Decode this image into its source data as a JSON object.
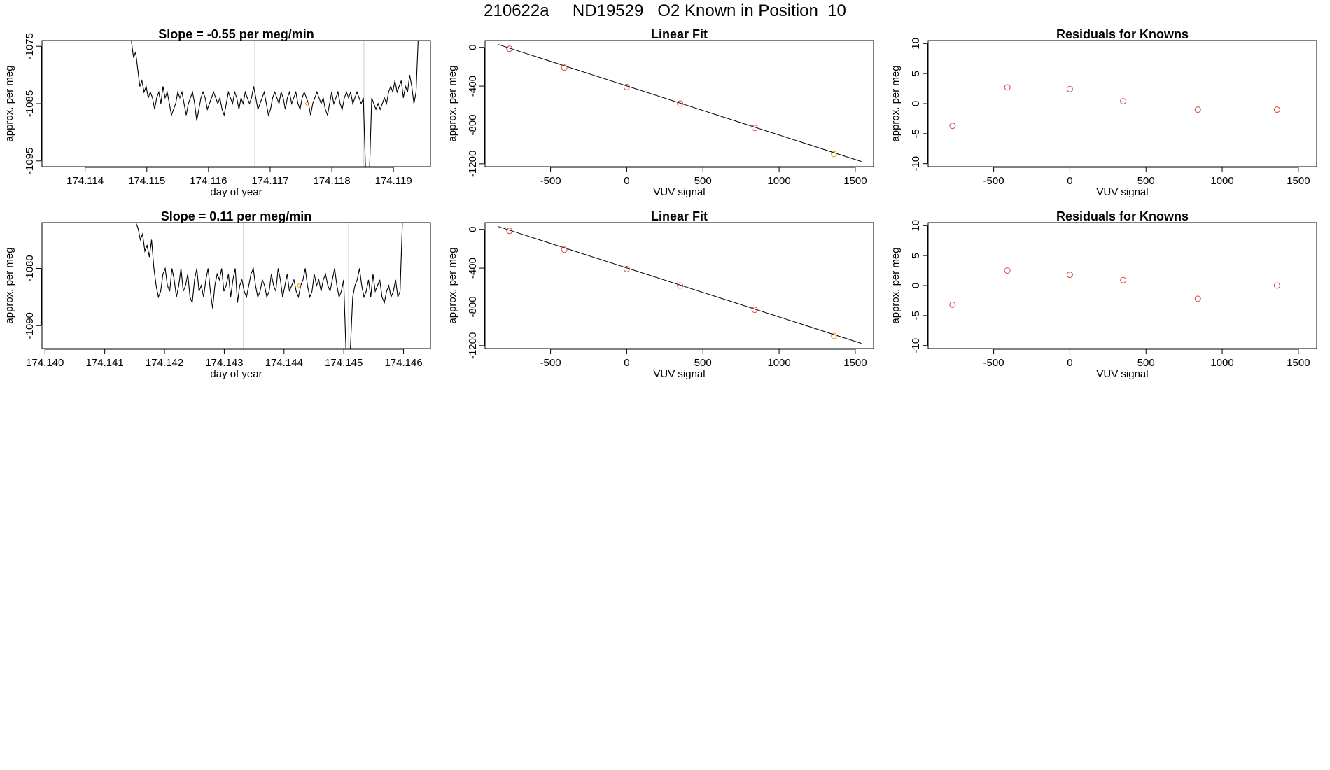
{
  "figure": {
    "title": "210622a     ND19529   O2 Known in Position  10"
  },
  "chart_data": [
    {
      "id": "timeseries-1",
      "type": "line",
      "title": "Slope =  -0.55  per meg/min",
      "xlabel": "day of year",
      "ylabel": "approx. per meg",
      "xlim": [
        174.1133,
        174.1196
      ],
      "ylim": [
        -1096,
        -1074
      ],
      "xticks": [
        174.114,
        174.115,
        174.116,
        174.117,
        174.118,
        174.119
      ],
      "xtick_labels": [
        "174.114",
        "174.115",
        "174.116",
        "174.117",
        "174.118",
        "174.119"
      ],
      "yticks": [
        -1075,
        -1085,
        -1095
      ],
      "ytick_labels": [
        "-1075",
        "-1085",
        "-1095"
      ],
      "vlines": [
        174.11675,
        174.11852
      ],
      "highlight_point": {
        "x": 174.1176,
        "y": -1085.0,
        "color": "#e69f00"
      },
      "line_color": "#000000",
      "grid": false,
      "series": [
        {
          "x_start": 174.11475,
          "x_end": 174.1194,
          "values": [
            -1074,
            -1077,
            -1076,
            -1079,
            -1082,
            -1081,
            -1083,
            -1082,
            -1084,
            -1083,
            -1084,
            -1086,
            -1084,
            -1083,
            -1085,
            -1082,
            -1084,
            -1083,
            -1085,
            -1087,
            -1086,
            -1085,
            -1083,
            -1084,
            -1083,
            -1085,
            -1087,
            -1085,
            -1084,
            -1083,
            -1085,
            -1088,
            -1086,
            -1084,
            -1083,
            -1084,
            -1086,
            -1085,
            -1084,
            -1083,
            -1084,
            -1085,
            -1084,
            -1086,
            -1087,
            -1085,
            -1083,
            -1084,
            -1085,
            -1083,
            -1084,
            -1086,
            -1084,
            -1085,
            -1083,
            -1084,
            -1085,
            -1084,
            -1082,
            -1084,
            -1086,
            -1085,
            -1084,
            -1083,
            -1085,
            -1087,
            -1086,
            -1084,
            -1083,
            -1084,
            -1085,
            -1083,
            -1084,
            -1086,
            -1084,
            -1083,
            -1085,
            -1084,
            -1083,
            -1085,
            -1086,
            -1084,
            -1083,
            -1084,
            -1085,
            -1087,
            -1085,
            -1084,
            -1083,
            -1084,
            -1085,
            -1084,
            -1086,
            -1087,
            -1085,
            -1083,
            -1085,
            -1084,
            -1083,
            -1085,
            -1086,
            -1084,
            -1083,
            -1084,
            -1083,
            -1085,
            -1084,
            -1083,
            -1084,
            -1085,
            -1084,
            -1096,
            -1096,
            -1096,
            -1084,
            -1085,
            -1086,
            -1085,
            -1086,
            -1085,
            -1084,
            -1085,
            -1083,
            -1082,
            -1083,
            -1081,
            -1083,
            -1082,
            -1081,
            -1084,
            -1082,
            -1083,
            -1080,
            -1082,
            -1085,
            -1083,
            -1074
          ]
        }
      ]
    },
    {
      "id": "linearfit-1",
      "type": "scatter",
      "title": "Linear Fit",
      "xlabel": "VUV signal",
      "ylabel": "approx. per meg",
      "xlim": [
        -930,
        1620
      ],
      "ylim": [
        -1230,
        70
      ],
      "xticks": [
        -500,
        0,
        500,
        1000,
        1500
      ],
      "xtick_labels": [
        "-500",
        "0",
        "500",
        "1000",
        "1500"
      ],
      "yticks": [
        0,
        -400,
        -800,
        -1200
      ],
      "ytick_labels": [
        "0",
        "-400",
        "-800",
        "-1200"
      ],
      "grid": false,
      "fit_line": {
        "x": [
          -845,
          1540
        ],
        "y": [
          30,
          -1177
        ],
        "color": "#000000"
      },
      "series": [
        {
          "marker": "circle-open",
          "x": [
            -770,
            -410,
            0,
            350,
            840,
            1360
          ],
          "y": [
            -15,
            -210,
            -410,
            -580,
            -830,
            -1100
          ],
          "colors": [
            "#dd4444",
            "#dd4444",
            "#dd4444",
            "#dd4444",
            "#dd4444",
            "#e69f00"
          ]
        }
      ]
    },
    {
      "id": "residuals-1",
      "type": "scatter",
      "title": "Residuals for Knowns",
      "xlabel": "VUV signal",
      "ylabel": "approx. per meg",
      "xlim": [
        -930,
        1620
      ],
      "ylim": [
        -10.5,
        10.5
      ],
      "xticks": [
        -500,
        0,
        500,
        1000,
        1500
      ],
      "xtick_labels": [
        "-500",
        "0",
        "500",
        "1000",
        "1500"
      ],
      "yticks": [
        10,
        5,
        0,
        -5,
        -10
      ],
      "ytick_labels": [
        "10",
        "5",
        "0",
        "-5",
        "-10"
      ],
      "grid": false,
      "series": [
        {
          "marker": "circle-open",
          "x": [
            -770,
            -410,
            0,
            350,
            840,
            1360
          ],
          "y": [
            -3.7,
            2.7,
            2.4,
            0.4,
            -1.0,
            -1.0
          ],
          "colors": [
            "#dd4444",
            "#dd4444",
            "#dd4444",
            "#dd4444",
            "#dd4444",
            "#dd4444"
          ]
        }
      ]
    },
    {
      "id": "timeseries-2",
      "type": "line",
      "title": "Slope =  0.11  per meg/min",
      "xlabel": "day of year",
      "ylabel": "approx. per meg",
      "xlim": [
        174.13995,
        174.14645
      ],
      "ylim": [
        -1094,
        -1072
      ],
      "xticks": [
        174.14,
        174.141,
        174.142,
        174.143,
        174.144,
        174.145,
        174.146
      ],
      "xtick_labels": [
        "174.140",
        "174.141",
        "174.142",
        "174.143",
        "174.144",
        "174.145",
        "174.146"
      ],
      "yticks": [
        -1080,
        -1090
      ],
      "ytick_labels": [
        "-1080",
        "-1090"
      ],
      "vlines": [
        174.14332,
        174.14508
      ],
      "highlight_point": {
        "x": 174.14425,
        "y": -1083.0,
        "color": "#e69f00"
      },
      "line_color": "#000000",
      "grid": false,
      "series": [
        {
          "x_start": 174.14152,
          "x_end": 174.14598,
          "values": [
            -1072,
            -1073,
            -1075,
            -1074,
            -1077,
            -1076,
            -1078,
            -1075,
            -1080,
            -1083,
            -1085,
            -1084,
            -1081,
            -1080,
            -1083,
            -1084,
            -1080,
            -1082,
            -1085,
            -1083,
            -1080,
            -1084,
            -1083,
            -1081,
            -1085,
            -1086,
            -1082,
            -1080,
            -1084,
            -1083,
            -1085,
            -1082,
            -1080,
            -1084,
            -1087,
            -1083,
            -1081,
            -1082,
            -1080,
            -1084,
            -1083,
            -1081,
            -1085,
            -1082,
            -1080,
            -1086,
            -1083,
            -1082,
            -1084,
            -1085,
            -1083,
            -1081,
            -1080,
            -1083,
            -1085,
            -1084,
            -1082,
            -1083,
            -1085,
            -1084,
            -1081,
            -1083,
            -1084,
            -1080,
            -1082,
            -1085,
            -1083,
            -1081,
            -1084,
            -1083,
            -1082,
            -1084,
            -1085,
            -1083,
            -1082,
            -1080,
            -1083,
            -1085,
            -1084,
            -1081,
            -1083,
            -1082,
            -1084,
            -1082,
            -1081,
            -1083,
            -1084,
            -1082,
            -1080,
            -1083,
            -1085,
            -1084,
            -1082,
            -1094,
            -1094,
            -1094,
            -1085,
            -1083,
            -1082,
            -1080,
            -1083,
            -1085,
            -1084,
            -1082,
            -1085,
            -1081,
            -1084,
            -1083,
            -1082,
            -1085,
            -1086,
            -1084,
            -1083,
            -1085,
            -1084,
            -1082,
            -1085,
            -1084,
            -1072
          ]
        }
      ]
    },
    {
      "id": "linearfit-2",
      "type": "scatter",
      "title": "Linear Fit",
      "xlabel": "VUV signal",
      "ylabel": "approx. per meg",
      "xlim": [
        -930,
        1620
      ],
      "ylim": [
        -1230,
        70
      ],
      "xticks": [
        -500,
        0,
        500,
        1000,
        1500
      ],
      "xtick_labels": [
        "-500",
        "0",
        "500",
        "1000",
        "1500"
      ],
      "yticks": [
        0,
        -400,
        -800,
        -1200
      ],
      "ytick_labels": [
        "0",
        "-400",
        "-800",
        "-1200"
      ],
      "grid": false,
      "fit_line": {
        "x": [
          -845,
          1540
        ],
        "y": [
          30,
          -1177
        ],
        "color": "#000000"
      },
      "series": [
        {
          "marker": "circle-open",
          "x": [
            -770,
            -410,
            0,
            350,
            840,
            1360
          ],
          "y": [
            -15,
            -210,
            -410,
            -580,
            -830,
            -1100
          ],
          "colors": [
            "#dd4444",
            "#dd4444",
            "#dd4444",
            "#dd4444",
            "#dd4444",
            "#e69f00"
          ]
        }
      ]
    },
    {
      "id": "residuals-2",
      "type": "scatter",
      "title": "Residuals for Knowns",
      "xlabel": "VUV signal",
      "ylabel": "approx. per meg",
      "xlim": [
        -930,
        1620
      ],
      "ylim": [
        -10.5,
        10.5
      ],
      "xticks": [
        -500,
        0,
        500,
        1000,
        1500
      ],
      "xtick_labels": [
        "-500",
        "0",
        "500",
        "1000",
        "1500"
      ],
      "yticks": [
        10,
        5,
        0,
        -5,
        -10
      ],
      "ytick_labels": [
        "10",
        "5",
        "0",
        "-5",
        "-10"
      ],
      "grid": false,
      "series": [
        {
          "marker": "circle-open",
          "x": [
            -770,
            -410,
            0,
            350,
            840,
            1360
          ],
          "y": [
            -3.2,
            2.5,
            1.8,
            0.9,
            -2.2,
            0.0
          ],
          "colors": [
            "#dd4444",
            "#dd4444",
            "#dd4444",
            "#dd4444",
            "#dd4444",
            "#dd4444"
          ]
        }
      ]
    }
  ]
}
